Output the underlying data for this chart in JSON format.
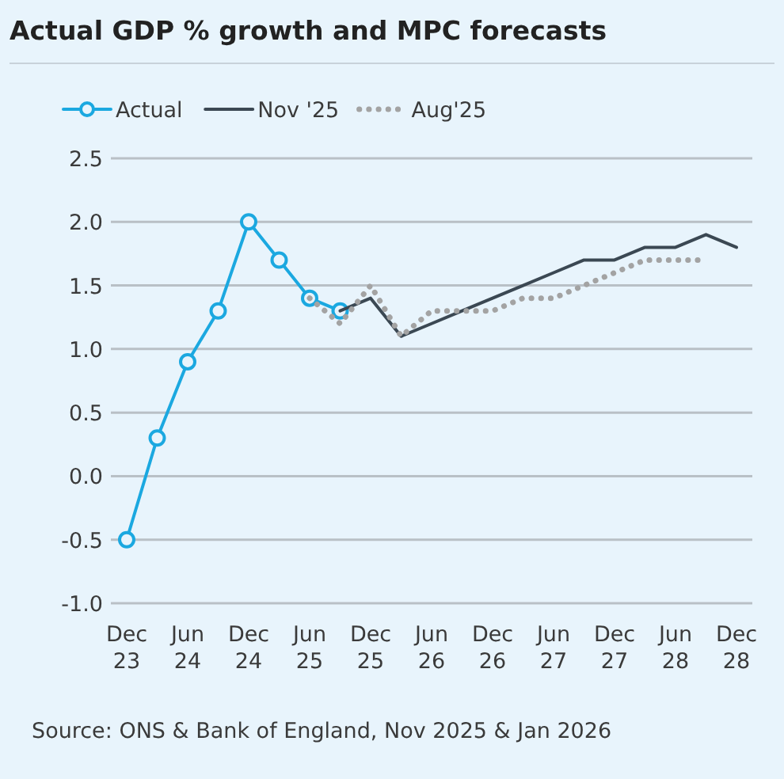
{
  "chart_data": {
    "type": "line",
    "title": "Actual GDP % growth and MPC forecasts",
    "categories": [
      "Dec 23",
      null,
      "Jun 24",
      null,
      "Dec 24",
      null,
      "Jun 25",
      null,
      "Dec 25",
      null,
      "Jun 26",
      null,
      "Dec 26",
      null,
      "Jun 27",
      null,
      "Dec 27",
      null,
      "Jun 28",
      null,
      "Dec 28"
    ],
    "series": [
      {
        "name": "Actual",
        "color": "#1ba8e0",
        "marker": "circle",
        "line_style": "solid",
        "values": [
          -0.5,
          0.3,
          0.9,
          1.3,
          2.0,
          1.7,
          1.4,
          1.3,
          null,
          null,
          null,
          null,
          null,
          null,
          null,
          null,
          null,
          null,
          null,
          null,
          null
        ]
      },
      {
        "name": "Nov '25",
        "color": "#3b4853",
        "marker": "none",
        "line_style": "solid",
        "values": [
          null,
          null,
          null,
          null,
          null,
          null,
          null,
          1.3,
          1.4,
          1.1,
          1.2,
          1.3,
          1.4,
          1.5,
          1.6,
          1.7,
          1.7,
          1.8,
          1.8,
          1.9,
          1.8
        ]
      },
      {
        "name": "Aug'25",
        "color": "#a3a3a3",
        "marker": "none",
        "line_style": "dotted",
        "values": [
          null,
          null,
          null,
          null,
          null,
          null,
          1.4,
          1.2,
          1.5,
          1.1,
          1.3,
          1.3,
          1.3,
          1.4,
          1.4,
          1.5,
          1.6,
          1.7,
          1.7,
          1.7,
          null
        ]
      }
    ],
    "ylim": [
      -1.0,
      2.5
    ],
    "yticks": [
      {
        "value": -1,
        "label": "-1.0"
      },
      {
        "value": -0.5,
        "label": "-0.5"
      },
      {
        "value": 0,
        "label": "0.0"
      },
      {
        "value": 0.5,
        "label": "0.5"
      },
      {
        "value": 1,
        "label": "1.0"
      },
      {
        "value": 1.5,
        "label": "1.5"
      },
      {
        "value": 2,
        "label": "2.0"
      },
      {
        "value": 2.5,
        "label": "2.5"
      }
    ],
    "grid": "y",
    "legend": "top left",
    "annotations": [
      "Source: ONS & Bank of England, Nov 2025 & Jan 2026"
    ]
  }
}
